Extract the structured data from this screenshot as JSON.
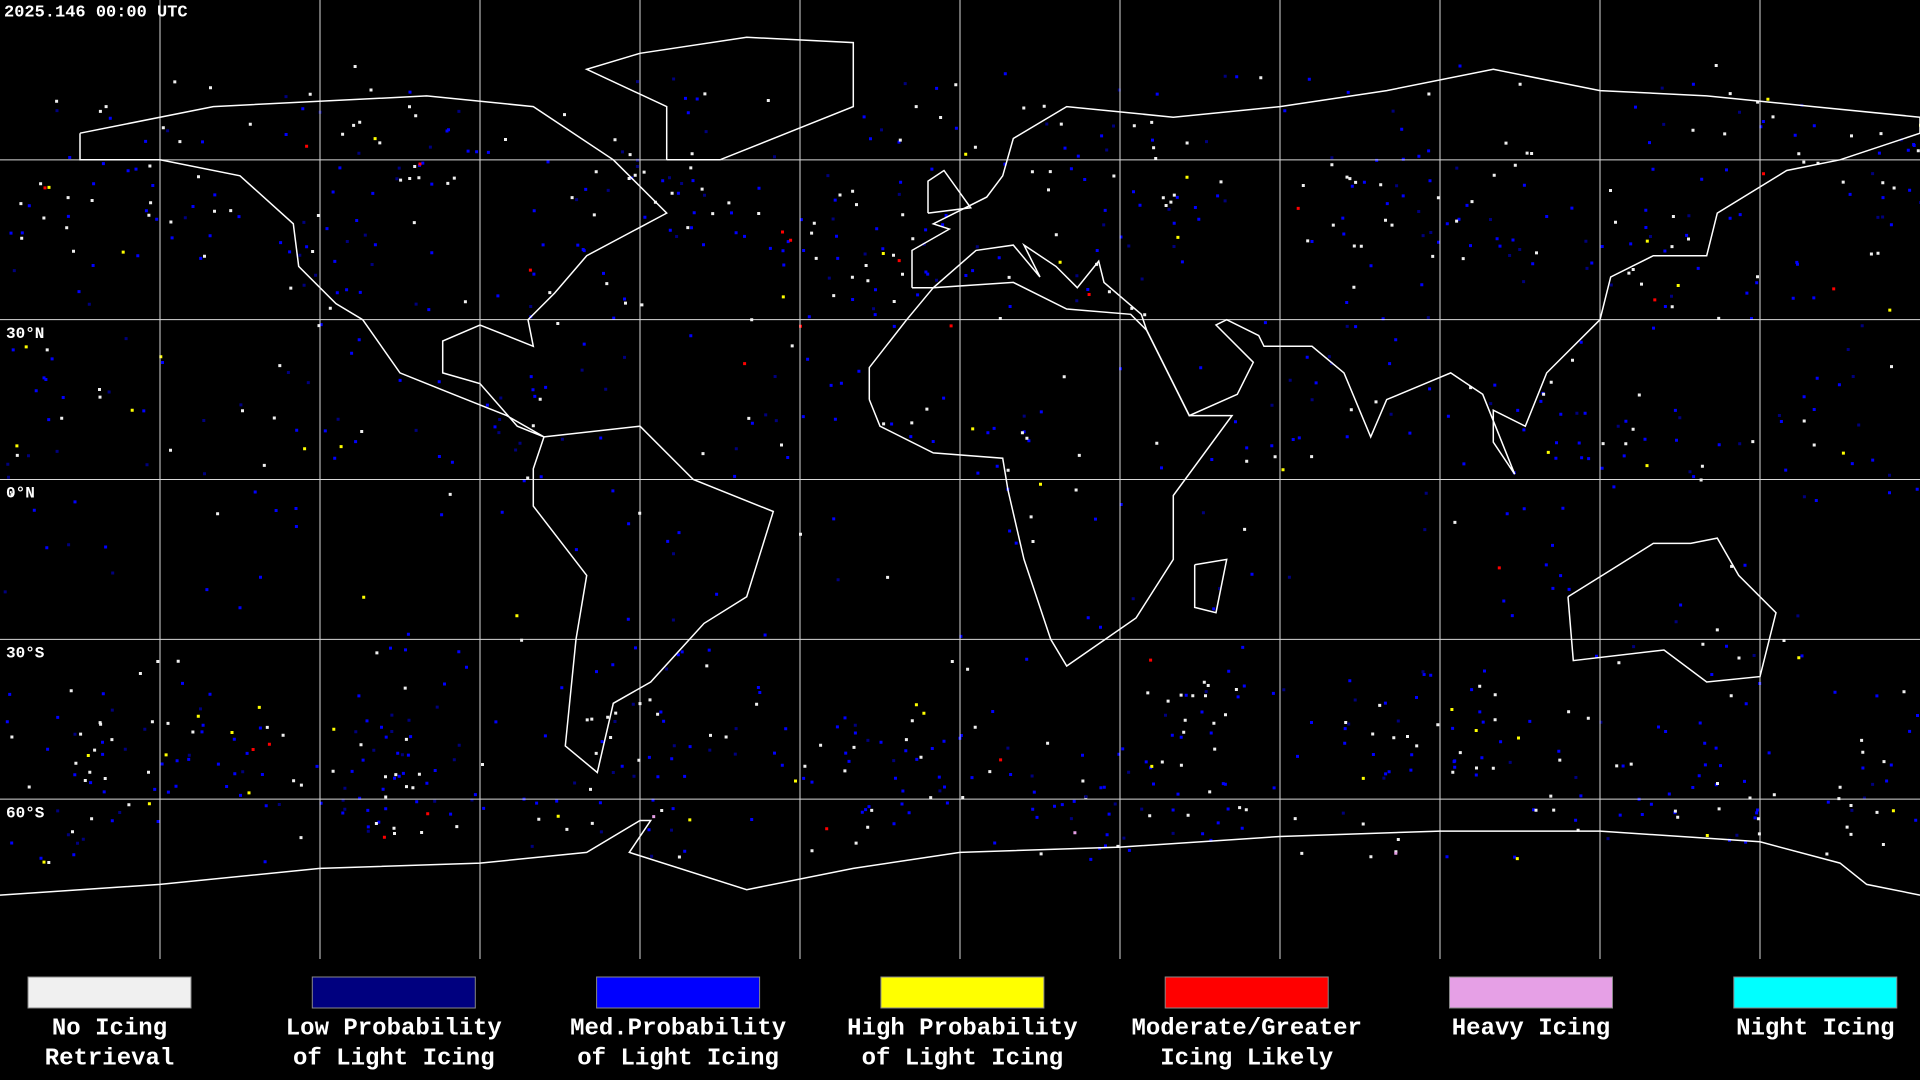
{
  "header": {
    "timestamp": "2025.146 00:00 UTC"
  },
  "map": {
    "latitude_labels": [
      "30°N",
      "0°N",
      "30°S",
      "60°S"
    ]
  },
  "legend": [
    {
      "lines": [
        "No Icing",
        "Retrieval"
      ],
      "color": "#f0f0f0"
    },
    {
      "lines": [
        "Low Probability",
        "of Light Icing"
      ],
      "color": "#00007f"
    },
    {
      "lines": [
        "Med.Probability",
        "of Light Icing"
      ],
      "color": "#0000ff"
    },
    {
      "lines": [
        "High Probability",
        "of Light Icing"
      ],
      "color": "#ffff00"
    },
    {
      "lines": [
        "Moderate/Greater",
        "Icing Likely"
      ],
      "color": "#ff0000"
    },
    {
      "lines": [
        "Heavy Icing"
      ],
      "color": "#e6a0e6"
    },
    {
      "lines": [
        "Night Icing"
      ],
      "color": "#00ffff"
    }
  ]
}
